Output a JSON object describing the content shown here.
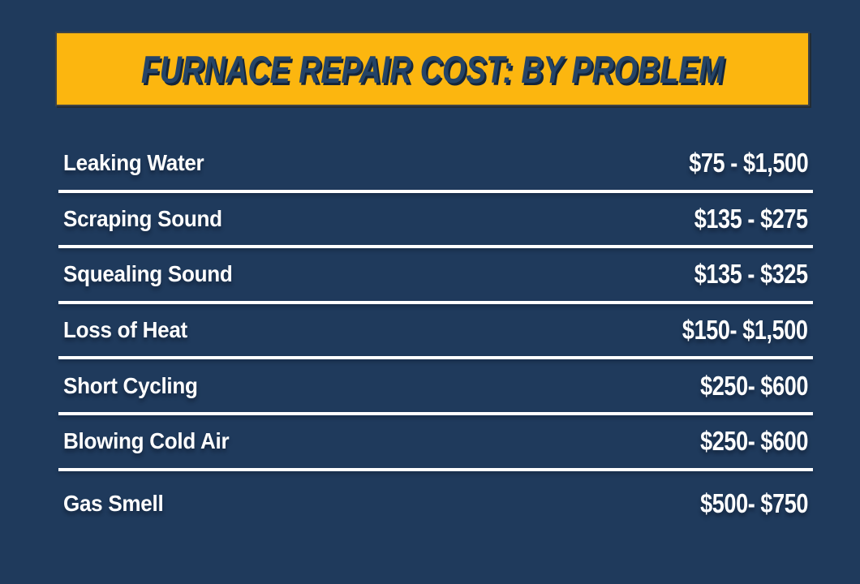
{
  "header": {
    "title": "FURNACE REPAIR COST: BY PROBLEM"
  },
  "colors": {
    "background_navy": "#1F3A5C",
    "banner_yellow": "#FCB60F",
    "banner_border": "#3F4447",
    "title_text": "#254467",
    "title_shadow": "#152539",
    "row_text": "#FFFFFF",
    "divider": "#FFFFFF"
  },
  "chart_data": {
    "type": "table",
    "title": "FURNACE REPAIR COST: BY PROBLEM",
    "rows": [
      {
        "problem": "Leaking Water",
        "cost": "$75 - $1,500",
        "min_usd": 75,
        "max_usd": 1500
      },
      {
        "problem": "Scraping Sound",
        "cost": "$135 - $275",
        "min_usd": 135,
        "max_usd": 275
      },
      {
        "problem": "Squealing Sound",
        "cost": "$135 - $325",
        "min_usd": 135,
        "max_usd": 325
      },
      {
        "problem": "Loss of Heat",
        "cost": "$150- $1,500",
        "min_usd": 150,
        "max_usd": 1500
      },
      {
        "problem": "Short Cycling",
        "cost": "$250- $600",
        "min_usd": 250,
        "max_usd": 600
      },
      {
        "problem": "Blowing Cold Air",
        "cost": "$250- $600",
        "min_usd": 250,
        "max_usd": 600
      },
      {
        "problem": "Gas Smell",
        "cost": "$500- $750",
        "min_usd": 500,
        "max_usd": 750
      }
    ]
  }
}
